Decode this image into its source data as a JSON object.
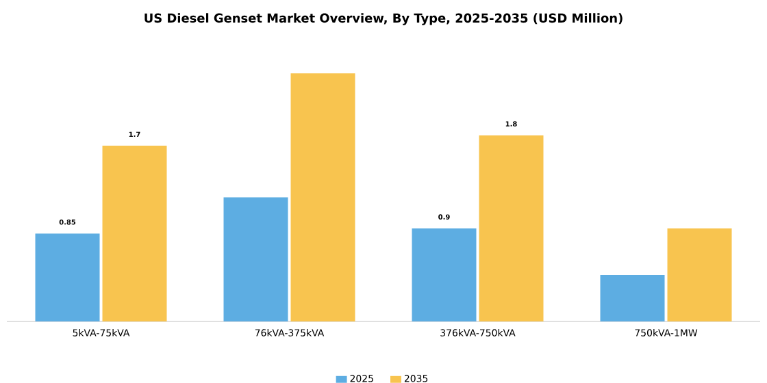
{
  "chart_data": {
    "type": "bar",
    "title": "US Diesel Genset Market Overview, By Type, 2025-2035 (USD Million)",
    "categories": [
      "5kVA-75kVA",
      "76kVA-375kVA",
      "376kVA-750kVA",
      "750kVA-1MW"
    ],
    "series": [
      {
        "name": "2025",
        "color": "#5dade2",
        "values": [
          0.85,
          1.2,
          0.9,
          0.45
        ],
        "value_labels": [
          "0.85",
          null,
          "0.9",
          null
        ]
      },
      {
        "name": "2035",
        "color": "#f8c44f",
        "values": [
          1.7,
          2.4,
          1.8,
          0.9
        ],
        "value_labels": [
          "1.7",
          null,
          "1.8",
          null
        ]
      }
    ],
    "legend": "bottom"
  }
}
